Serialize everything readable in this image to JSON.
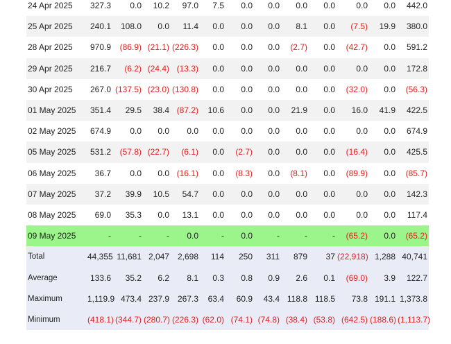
{
  "columns_count": 13,
  "rows": [
    {
      "date": "24 Apr 2025",
      "values": [
        "327.3",
        "0.0",
        "10.2",
        "97.0",
        "7.5",
        "0.0",
        "0.0",
        "0.0",
        "0.0",
        "0.0",
        "0.0",
        "442.0"
      ],
      "highlight": false
    },
    {
      "date": "25 Apr 2025",
      "values": [
        "240.1",
        "108.0",
        "0.0",
        "11.4",
        "0.0",
        "0.0",
        "0.0",
        "8.1",
        "0.0",
        "(7.5)",
        "19.9",
        "380.0"
      ],
      "highlight": false
    },
    {
      "date": "28 Apr 2025",
      "values": [
        "970.9",
        "(86.9)",
        "(21.1)",
        "(226.3)",
        "0.0",
        "0.0",
        "0.0",
        "(2.7)",
        "0.0",
        "(42.7)",
        "0.0",
        "591.2"
      ],
      "highlight": false
    },
    {
      "date": "29 Apr 2025",
      "values": [
        "216.7",
        "(6.2)",
        "(24.4)",
        "(13.3)",
        "0.0",
        "0.0",
        "0.0",
        "0.0",
        "0.0",
        "0.0",
        "0.0",
        "172.8"
      ],
      "highlight": false
    },
    {
      "date": "30 Apr 2025",
      "values": [
        "267.0",
        "(137.5)",
        "(23.0)",
        "(130.8)",
        "0.0",
        "0.0",
        "0.0",
        "0.0",
        "0.0",
        "(32.0)",
        "0.0",
        "(56.3)"
      ],
      "highlight": false
    },
    {
      "date": "01 May 2025",
      "values": [
        "351.4",
        "29.5",
        "38.4",
        "(87.2)",
        "10.6",
        "0.0",
        "0.0",
        "21.9",
        "0.0",
        "16.0",
        "41.9",
        "422.5"
      ],
      "highlight": false
    },
    {
      "date": "02 May 2025",
      "values": [
        "674.9",
        "0.0",
        "0.0",
        "0.0",
        "0.0",
        "0.0",
        "0.0",
        "0.0",
        "0.0",
        "0.0",
        "0.0",
        "674.9"
      ],
      "highlight": false
    },
    {
      "date": "05 May 2025",
      "values": [
        "531.2",
        "(57.8)",
        "(22.7)",
        "(6.1)",
        "0.0",
        "(2.7)",
        "0.0",
        "0.0",
        "0.0",
        "(16.4)",
        "0.0",
        "425.5"
      ],
      "highlight": false
    },
    {
      "date": "06 May 2025",
      "values": [
        "36.7",
        "0.0",
        "0.0",
        "(16.1)",
        "0.0",
        "(8.3)",
        "0.0",
        "(8.1)",
        "0.0",
        "(89.9)",
        "0.0",
        "(85.7)"
      ],
      "highlight": false
    },
    {
      "date": "07 May 2025",
      "values": [
        "37.2",
        "39.9",
        "10.5",
        "54.7",
        "0.0",
        "0.0",
        "0.0",
        "0.0",
        "0.0",
        "0.0",
        "0.0",
        "142.3"
      ],
      "highlight": false
    },
    {
      "date": "08 May 2025",
      "values": [
        "69.0",
        "35.3",
        "0.0",
        "13.1",
        "0.0",
        "0.0",
        "0.0",
        "0.0",
        "0.0",
        "0.0",
        "0.0",
        "117.4"
      ],
      "highlight": false
    },
    {
      "date": "09 May 2025",
      "values": [
        "-",
        "-",
        "-",
        "0.0",
        "-",
        "0.0",
        "-",
        "-",
        "-",
        "(65.2)",
        "0.0",
        "(65.2)"
      ],
      "highlight": true
    }
  ],
  "summary": [
    {
      "label": "Total",
      "values": [
        "44,355",
        "11,681",
        "2,047",
        "2,698",
        "114",
        "250",
        "311",
        "879",
        "37",
        "(22,918)",
        "1,288",
        "40,741"
      ]
    },
    {
      "label": "Average",
      "values": [
        "133.6",
        "35.2",
        "6.2",
        "8.1",
        "0.3",
        "0.8",
        "0.9",
        "2.6",
        "0.1",
        "(69.0)",
        "3.9",
        "122.7"
      ]
    },
    {
      "label": "Maximum",
      "values": [
        "1,119.9",
        "473.4",
        "237.9",
        "267.3",
        "63.4",
        "60.9",
        "43.4",
        "118.8",
        "118.5",
        "73.8",
        "191.1",
        "1,373.8"
      ]
    },
    {
      "label": "Minimum",
      "values": [
        "(418.1)",
        "(344.7)",
        "(280.7)",
        "(226.3)",
        "(62.0)",
        "(74.1)",
        "(74.8)",
        "(38.4)",
        "(53.8)",
        "(642.5)",
        "(188.6)",
        "(1,113.7)"
      ]
    }
  ],
  "colors": {
    "negative": "#e0201e",
    "highlight_row": "#9bf58a",
    "summary_bg": "#e9ecf6",
    "stripe": "#f2f2f2"
  }
}
